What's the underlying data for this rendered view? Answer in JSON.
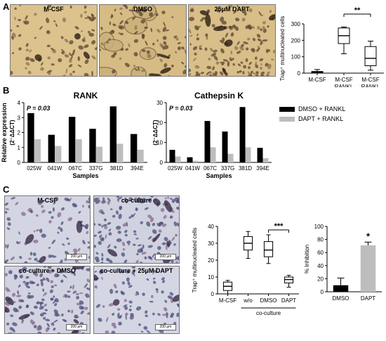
{
  "panels": {
    "A": {
      "letter": "A",
      "images": [
        "M-CSF",
        "DMSO",
        "25μM DAPT"
      ]
    },
    "B": {
      "letter": "B"
    },
    "C": {
      "letter": "C",
      "images": [
        "M-CSF",
        "co-culture",
        "co-culture + DMSO",
        "co-culture + 25μM DAPT"
      ],
      "scalebar": "200 μm"
    }
  },
  "colors": {
    "black": "#000000",
    "gray": "#bdbdbd",
    "tan": "#d9c08a",
    "lavender": "#cdd0e0"
  },
  "legend": {
    "items": [
      "DMSO + RANKL",
      "DAPT + RANKL"
    ]
  },
  "chart_data": [
    {
      "id": "A-box",
      "type": "box",
      "ylabel": "Trap⁺ multinucleated cells",
      "yticks": [
        0,
        100,
        200,
        300
      ],
      "ylim": [
        0,
        300
      ],
      "categories": [
        [
          "M-CSF"
        ],
        [
          "M-CSF",
          "RANKL",
          "DMSO"
        ],
        [
          "M-CSF",
          "RANKL",
          "DAPT"
        ]
      ],
      "boxes": [
        {
          "min": 0,
          "q1": 2,
          "median": 7,
          "q3": 10,
          "max": 22
        },
        {
          "min": 118,
          "q1": 180,
          "median": 228,
          "q3": 275,
          "max": 281
        },
        {
          "min": 18,
          "q1": 45,
          "median": 90,
          "q3": 162,
          "max": 195
        }
      ],
      "significance": "**"
    },
    {
      "id": "B-rank",
      "type": "bar",
      "title": "RANK",
      "annotation": "P = 0.03",
      "ylabel": "Relative expression",
      "ylabel2": "(2⁻ΔΔCT)",
      "xlabel": "Samples",
      "yticks": [
        0,
        1,
        2,
        3,
        4
      ],
      "ylim": [
        0,
        4
      ],
      "categories": [
        "025W",
        "041W",
        "067C",
        "337G",
        "381D",
        "394E"
      ],
      "series": [
        {
          "name": "DMSO + RANKL",
          "values": [
            3.3,
            1.85,
            3.05,
            2.25,
            3.75,
            1.9
          ]
        },
        {
          "name": "DAPT + RANKL",
          "values": [
            1.55,
            1.1,
            1.55,
            1.05,
            1.25,
            0.85
          ]
        }
      ]
    },
    {
      "id": "B-ctsk",
      "type": "bar",
      "title": "Cathepsin K",
      "annotation": "P = 0.03",
      "ylabel": "Relative expression",
      "ylabel2": "(2⁻ΔΔCT)",
      "xlabel": "Samples",
      "yticks": [
        0,
        10,
        20,
        30
      ],
      "ylim": [
        0,
        30
      ],
      "categories": [
        "025W",
        "041W",
        "067C",
        "337G",
        "381D",
        "394E"
      ],
      "series": [
        {
          "name": "DMSO + RANKL",
          "values": [
            6.3,
            2.6,
            20.8,
            15.5,
            27.8,
            7.3
          ]
        },
        {
          "name": "DAPT + RANKL",
          "values": [
            3.0,
            0.8,
            7.6,
            4.3,
            7.6,
            2.1
          ]
        }
      ]
    },
    {
      "id": "C-box",
      "type": "box",
      "ylabel": "Trap⁺ multinucleated cells",
      "yticks": [
        0,
        10,
        20,
        30,
        40
      ],
      "ylim": [
        0,
        40
      ],
      "categories": [
        [
          "M-CSF"
        ],
        [
          "w/o"
        ],
        [
          "DMSO"
        ],
        [
          "DAPT"
        ]
      ],
      "group_label": "co-culture",
      "boxes": [
        {
          "min": 0,
          "q1": 2,
          "median": 4.5,
          "q3": 7,
          "max": 8
        },
        {
          "min": 21,
          "q1": 26,
          "median": 30,
          "q3": 34,
          "max": 37
        },
        {
          "min": 18,
          "q1": 22,
          "median": 26,
          "q3": 31,
          "max": 35
        },
        {
          "min": 4,
          "q1": 6.5,
          "median": 8.5,
          "q3": 10,
          "max": 11
        }
      ],
      "significance": "***"
    },
    {
      "id": "C-inhib",
      "type": "bar",
      "ylabel": "% Inhibition",
      "yticks": [
        0,
        20,
        40,
        60,
        80,
        100
      ],
      "ylim": [
        0,
        100
      ],
      "categories": [
        "DMSO",
        "DAPT"
      ],
      "values": [
        10,
        71
      ],
      "errors": [
        11,
        5
      ],
      "significance": "*"
    }
  ]
}
